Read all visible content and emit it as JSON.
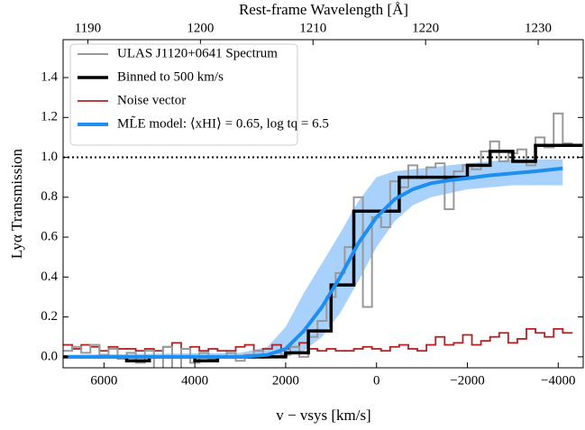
{
  "chart_data": {
    "type": "line",
    "xlabel": "v − vsys [km/s]",
    "ylabel": "Lyα Transmission",
    "x2label": "Rest-frame Wavelength [Å]",
    "xlim": [
      6900,
      -4550
    ],
    "ylim": [
      -0.055,
      1.59
    ],
    "x2lim": [
      1187.8,
      1234
    ],
    "xticks": [
      6000,
      4000,
      2000,
      0,
      {
        "value": -2000,
        "label": "−2000"
      },
      {
        "value": -4000,
        "label": "−4000"
      }
    ],
    "yticks": [
      {
        "value": 0,
        "label": "0.0"
      },
      0.2,
      0.4,
      0.6,
      0.8,
      {
        "value": 1,
        "label": "1.0"
      },
      1.2,
      1.4
    ],
    "x2ticks": [
      1190,
      1200,
      1210,
      1220,
      1230
    ],
    "reference_line": 1.0,
    "legend": "upper left",
    "band": {
      "color": "#a8d1fb",
      "x": [
        6800,
        3000,
        2400,
        2000,
        1600,
        1200,
        800,
        400,
        0,
        -400,
        -800,
        -1200,
        -1600,
        -2000,
        -2500,
        -3000,
        -3500,
        -4100
      ],
      "lower": [
        0,
        -0.01,
        -0.01,
        0.0,
        0.03,
        0.1,
        0.22,
        0.38,
        0.55,
        0.68,
        0.76,
        0.8,
        0.82,
        0.84,
        0.85,
        0.86,
        0.86,
        0.86
      ],
      "upper": [
        0.01,
        0.02,
        0.05,
        0.15,
        0.32,
        0.47,
        0.62,
        0.78,
        0.9,
        0.93,
        0.94,
        0.95,
        0.96,
        0.97,
        0.98,
        0.99,
        0.99,
        0.99
      ]
    },
    "series": [
      {
        "name": "ULAS J1120+0641 Spectrum",
        "color": "#999999",
        "width": 2,
        "step": true,
        "x": [
          6800,
          6600,
          6400,
          6200,
          6000,
          5800,
          5600,
          5400,
          5200,
          5000,
          4800,
          4600,
          4400,
          4200,
          4000,
          3800,
          3600,
          3400,
          3200,
          3000,
          2800,
          2600,
          2400,
          2200,
          2000,
          1800,
          1600,
          1400,
          1200,
          1000,
          800,
          600,
          400,
          200,
          0,
          -200,
          -400,
          -600,
          -800,
          -1000,
          -1200,
          -1400,
          -1600,
          -1800,
          -2000,
          -2200,
          -2400,
          -2600,
          -2800,
          -3000,
          -3200,
          -3400,
          -3600,
          -3800,
          -4000,
          -4200
        ],
        "values": [
          0.03,
          0.05,
          0.02,
          0.06,
          0.01,
          0.04,
          -0.01,
          0.02,
          -0.03,
          0.03,
          -0.09,
          0.05,
          -0.06,
          0.04,
          -0.03,
          0.02,
          -0.01,
          0.0,
          0.02,
          -0.02,
          0.01,
          0.03,
          0.0,
          0.02,
          0.01,
          0.05,
          0.0,
          0.1,
          0.18,
          0.3,
          0.42,
          0.55,
          0.8,
          0.25,
          0.7,
          0.65,
          0.88,
          0.85,
          0.96,
          0.9,
          0.95,
          0.97,
          0.74,
          0.93,
          0.96,
          0.94,
          1.03,
          1.08,
          0.98,
          1.02,
          1.04,
          0.96,
          1.1,
          1.05,
          1.22,
          1.07
        ]
      },
      {
        "name": "Binned to 500 km/s",
        "color": "#000000",
        "width": 3.5,
        "step": true,
        "x": [
          6750,
          6250,
          5750,
          5250,
          4750,
          4250,
          3750,
          3250,
          2750,
          2250,
          1750,
          1250,
          750,
          250,
          -250,
          -750,
          -1250,
          -1750,
          -2250,
          -2750,
          -3250,
          -3750,
          -4250
        ],
        "values": [
          0.0,
          0.0,
          0.0,
          -0.02,
          0.0,
          0.0,
          -0.02,
          0.0,
          0.0,
          0.0,
          0.02,
          0.13,
          0.36,
          0.73,
          0.73,
          0.9,
          0.9,
          0.9,
          0.96,
          1.03,
          0.98,
          1.06,
          1.06
        ]
      },
      {
        "name": "Noise vector",
        "color": "#b22222",
        "width": 1.8,
        "step": true,
        "x": [
          6800,
          6600,
          6400,
          6200,
          6000,
          5800,
          5600,
          5400,
          5200,
          5000,
          4800,
          4600,
          4400,
          4200,
          4000,
          3800,
          3600,
          3400,
          3200,
          3000,
          2800,
          2600,
          2400,
          2200,
          2000,
          1800,
          1600,
          1400,
          1200,
          1000,
          800,
          600,
          400,
          200,
          0,
          -200,
          -400,
          -600,
          -800,
          -1000,
          -1200,
          -1400,
          -1600,
          -1800,
          -2000,
          -2200,
          -2400,
          -2600,
          -2800,
          -3000,
          -3200,
          -3400,
          -3600,
          -3800,
          -4000,
          -4200
        ],
        "values": [
          0.06,
          0.04,
          0.06,
          0.05,
          0.03,
          0.05,
          0.04,
          0.04,
          0.03,
          0.04,
          0.03,
          0.05,
          0.07,
          0.04,
          0.05,
          0.03,
          0.04,
          0.03,
          0.03,
          0.05,
          0.06,
          0.03,
          0.04,
          0.06,
          0.04,
          0.05,
          0.07,
          0.04,
          0.03,
          0.04,
          0.03,
          0.03,
          0.04,
          0.05,
          0.04,
          0.03,
          0.05,
          0.06,
          0.04,
          0.03,
          0.06,
          0.1,
          0.06,
          0.07,
          0.11,
          0.06,
          0.08,
          0.1,
          0.12,
          0.07,
          0.09,
          0.14,
          0.12,
          0.1,
          0.14,
          0.12
        ]
      },
      {
        "name": "ML̃E model: ⟨xHI⟩ = 0.65, log tq = 6.5",
        "color": "#1e8ff0",
        "width": 4,
        "step": false,
        "x": [
          6800,
          3000,
          2400,
          2000,
          1600,
          1200,
          800,
          400,
          0,
          -400,
          -800,
          -1200,
          -1600,
          -2000,
          -2500,
          -3000,
          -3500,
          -4100
        ],
        "values": [
          0,
          0,
          0.01,
          0.04,
          0.13,
          0.25,
          0.4,
          0.57,
          0.7,
          0.79,
          0.84,
          0.87,
          0.885,
          0.895,
          0.91,
          0.92,
          0.93,
          0.945
        ]
      }
    ]
  }
}
